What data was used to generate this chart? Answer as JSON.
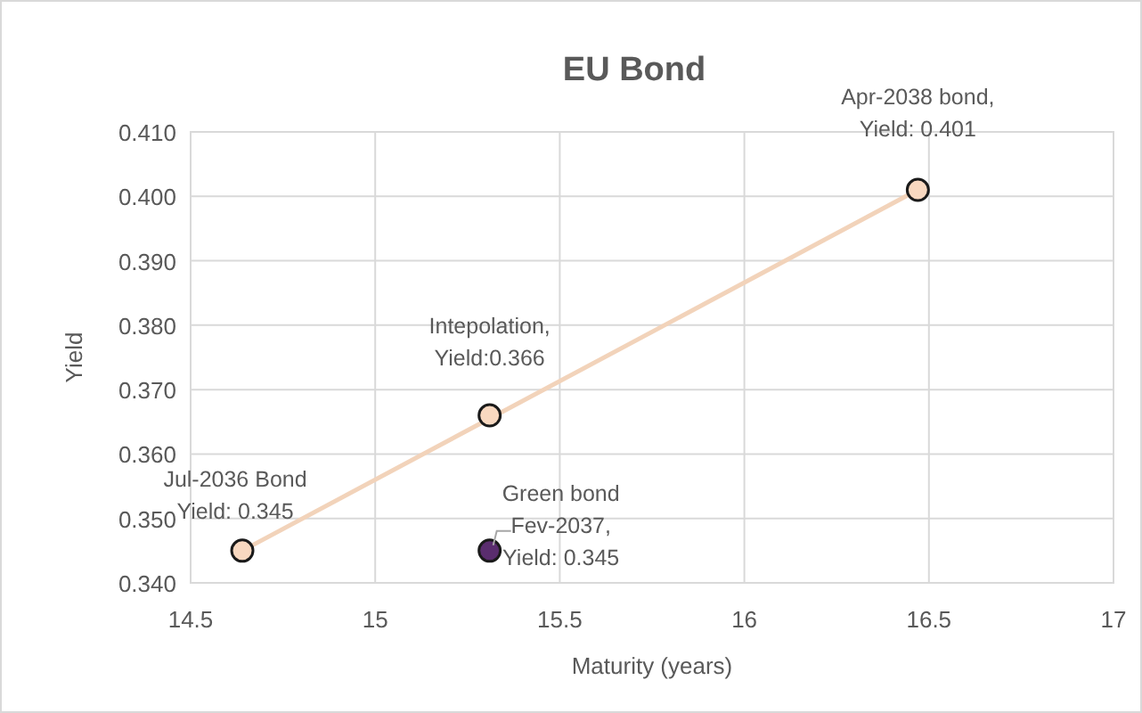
{
  "chart_data": {
    "type": "scatter",
    "title": "EU Bond",
    "xlabel": "Maturity (years)",
    "ylabel": "Yield",
    "xlim": [
      14.5,
      17
    ],
    "xticks": [
      14.5,
      15,
      15.5,
      16,
      16.5,
      17
    ],
    "ylim": [
      0.34,
      0.41
    ],
    "yticks": [
      {
        "value": 0.34,
        "label": "0.340"
      },
      {
        "value": 0.35,
        "label": "0.350"
      },
      {
        "value": 0.36,
        "label": "0.360"
      },
      {
        "value": 0.37,
        "label": "0.370"
      },
      {
        "value": 0.38,
        "label": "0.380"
      },
      {
        "value": 0.39,
        "label": "0.390"
      },
      {
        "value": 0.4,
        "label": "0.400"
      },
      {
        "value": 0.41,
        "label": "0.410"
      }
    ],
    "grid": true,
    "marker": "circle",
    "series": [
      {
        "type": "line",
        "x": [
          14.64,
          16.47
        ],
        "values": [
          0.345,
          0.401
        ],
        "color": "#f2d3ba",
        "marker": "none"
      },
      {
        "x": [
          14.64,
          15.31,
          16.47
        ],
        "values": [
          0.345,
          0.366,
          0.401
        ],
        "color": "#f8d8c0"
      },
      {
        "x": [
          15.31
        ],
        "values": [
          0.345
        ],
        "color": "#5a2d6e"
      }
    ],
    "annotations": [
      {
        "text": "Jul-2036 Bond\nYield: 0.345",
        "x": 14.64,
        "y": 0.345
      },
      {
        "text": "Intepolation,\nYield:0.366",
        "x": 15.31,
        "y": 0.366
      },
      {
        "text": "Apr-2038 bond,\nYield: 0.401",
        "x": 16.47,
        "y": 0.401
      },
      {
        "text": "Green bond\nFev-2037,\nYield: 0.345",
        "x": 15.31,
        "y": 0.345
      }
    ]
  }
}
